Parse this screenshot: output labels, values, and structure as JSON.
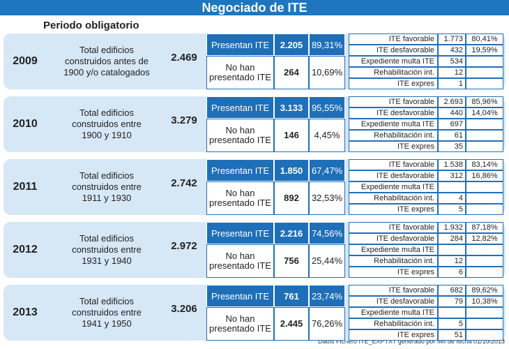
{
  "header": {
    "title": "Negociado de ITE",
    "subtitle": "Periodo obligatorio"
  },
  "blocks": [
    {
      "year": "2009",
      "description": [
        "Total edificios",
        "construidos antes de",
        "1900 y/o catalogados"
      ],
      "total": "2.469",
      "presentan": {
        "label": "Presentan ITE",
        "count": "2.205",
        "percent": "89,31%"
      },
      "no_presentan": {
        "label": "No han presentado ITE",
        "count": "264",
        "percent": "10,69%"
      },
      "details": [
        [
          "ITE favorable",
          "1.773",
          "80,41%"
        ],
        [
          "ITE desfavorable",
          "432",
          "19,59%"
        ],
        [
          "Expediente multa ITE",
          "534",
          null
        ],
        [
          "Rehabilitación int.",
          "12",
          null
        ],
        [
          "ITE expres",
          "1",
          null
        ]
      ]
    },
    {
      "year": "2010",
      "description": [
        "Total edificios",
        "construidos entre",
        "1900 y 1910"
      ],
      "total": "3.279",
      "presentan": {
        "label": "Presentan ITE",
        "count": "3.133",
        "percent": "95,55%"
      },
      "no_presentan": {
        "label": "No han presentado ITE",
        "count": "146",
        "percent": "4,45%"
      },
      "details": [
        [
          "ITE favorable",
          "2.693",
          "85,96%"
        ],
        [
          "ITE desfavorable",
          "440",
          "14,04%"
        ],
        [
          "Expediente multa ITE",
          "697",
          null
        ],
        [
          "Rehabilitación int.",
          "61",
          null
        ],
        [
          "ITE expres",
          "35",
          null
        ]
      ]
    },
    {
      "year": "2011",
      "description": [
        "Total edificios",
        "construidos entre",
        "1911 y 1930"
      ],
      "total": "2.742",
      "presentan": {
        "label": "Presentan ITE",
        "count": "1.850",
        "percent": "67,47%"
      },
      "no_presentan": {
        "label": "No han presentado ITE",
        "count": "892",
        "percent": "32,53%"
      },
      "details": [
        [
          "ITE favorable",
          "1.538",
          "83,14%"
        ],
        [
          "ITE desfavorable",
          "312",
          "16,86%"
        ],
        [
          "Expediente multa ITE",
          null,
          null
        ],
        [
          "Rehabilitación int.",
          "4",
          null
        ],
        [
          "ITE expres",
          "5",
          null
        ]
      ]
    },
    {
      "year": "2012",
      "description": [
        "Total edificios",
        "construidos entre",
        "1931 y 1940"
      ],
      "total": "2.972",
      "presentan": {
        "label": "Presentan ITE",
        "count": "2.216",
        "percent": "74,56%"
      },
      "no_presentan": {
        "label": "No han presentado ITE",
        "count": "756",
        "percent": "25,44%"
      },
      "details": [
        [
          "ITE favorable",
          "1.932",
          "87,18%"
        ],
        [
          "ITE desfavorable",
          "284",
          "12,82%"
        ],
        [
          "Expediente multa ITE",
          null,
          null
        ],
        [
          "Rehabilitación int.",
          "12",
          null
        ],
        [
          "ITE expres",
          "6",
          null
        ]
      ]
    },
    {
      "year": "2013",
      "description": [
        "Total edificios",
        "construidos entre",
        "1941 y 1950"
      ],
      "total": "3.206",
      "presentan": {
        "label": "Presentan ITE",
        "count": "761",
        "percent": "23,74%"
      },
      "no_presentan": {
        "label": "No han presentado ITE",
        "count": "2.445",
        "percent": "76,26%"
      },
      "details": [
        [
          "ITE favorable",
          "682",
          "89,62%"
        ],
        [
          "ITE desfavorable",
          "79",
          "10,38%"
        ],
        [
          "Expediente multa ITE",
          null,
          null
        ],
        [
          "Rehabilitación int.",
          "5",
          null
        ],
        [
          "ITE expres",
          "51",
          null
        ]
      ]
    }
  ],
  "footer": "Datos Fichero ITE_EXPTXT generado por IMI de fecha 01/10/2013"
}
